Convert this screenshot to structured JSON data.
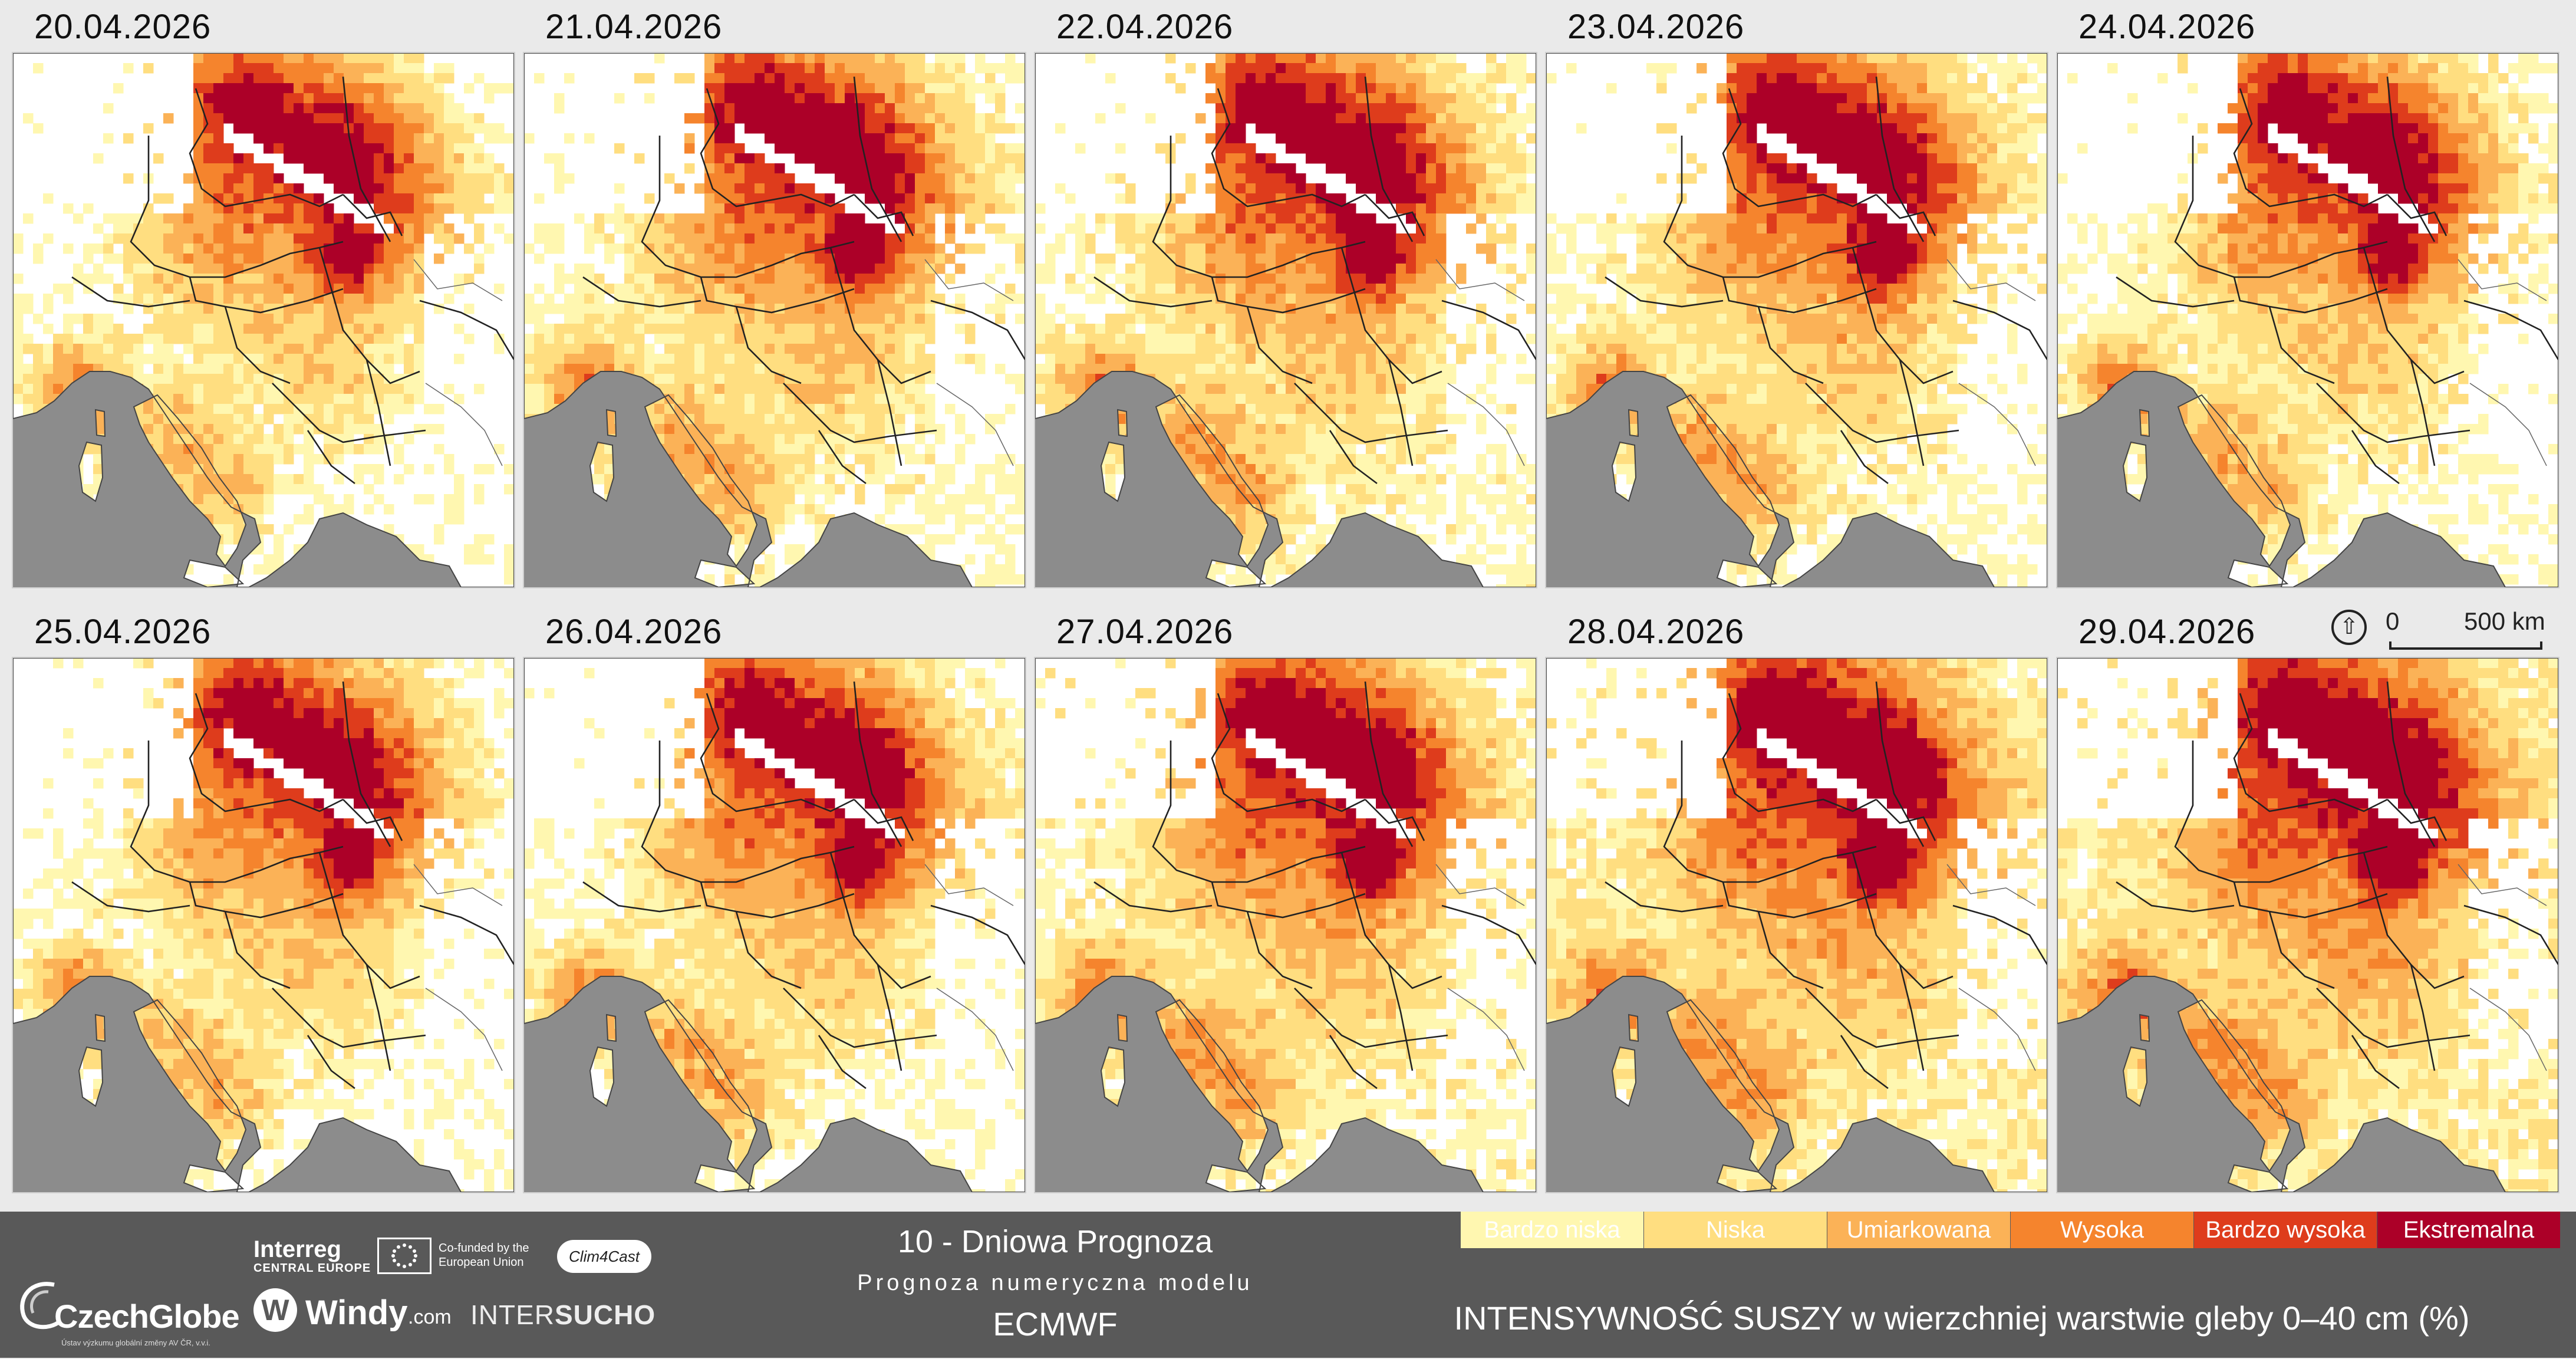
{
  "panels": [
    {
      "date": "20.04.2026"
    },
    {
      "date": "21.04.2026"
    },
    {
      "date": "22.04.2026"
    },
    {
      "date": "23.04.2026"
    },
    {
      "date": "24.04.2026"
    },
    {
      "date": "25.04.2026"
    },
    {
      "date": "26.04.2026"
    },
    {
      "date": "27.04.2026"
    },
    {
      "date": "28.04.2026"
    },
    {
      "date": "29.04.2026"
    }
  ],
  "scale": {
    "zero": "0",
    "distance": "500 km",
    "north_symbol": "N"
  },
  "footer": {
    "czechglobe": {
      "name": "CzechGlobe",
      "subtitle": "Ústav výzkumu globální změny AV ČR, v.v.i."
    },
    "interreg": {
      "line1": "Interreg",
      "line2": "CENTRAL EUROPE"
    },
    "eu": {
      "text": "Co-funded by the European Union"
    },
    "clim4cast": "Clim4Cast",
    "windy": {
      "name": "Windy",
      "suffix": ".com"
    },
    "intersucho": {
      "part1": "INTER",
      "part2": "SUCHO"
    },
    "title": "10 - Dniowa Prognoza",
    "subtitle": "Prognoza numeryczna modelu",
    "model": "ECMWF",
    "caption": "INTENSYWNOŚĆ SUSZY w wierzchniej warstwie gleby 0–40 cm (%)"
  },
  "legend": [
    {
      "label": "Bardzo niska",
      "color": "#fff7b0"
    },
    {
      "label": "Niska",
      "color": "#ffde80"
    },
    {
      "label": "Umiarkowana",
      "color": "#fbb257"
    },
    {
      "label": "Wysoka",
      "color": "#f5842d"
    },
    {
      "label": "Bardzo wysoka",
      "color": "#de3c1c"
    },
    {
      "label": "Ekstremalna",
      "color": "#ac0028"
    }
  ],
  "colors": {
    "land_nodata": "#ffffff",
    "sea_outside": "#8c8c8c"
  }
}
